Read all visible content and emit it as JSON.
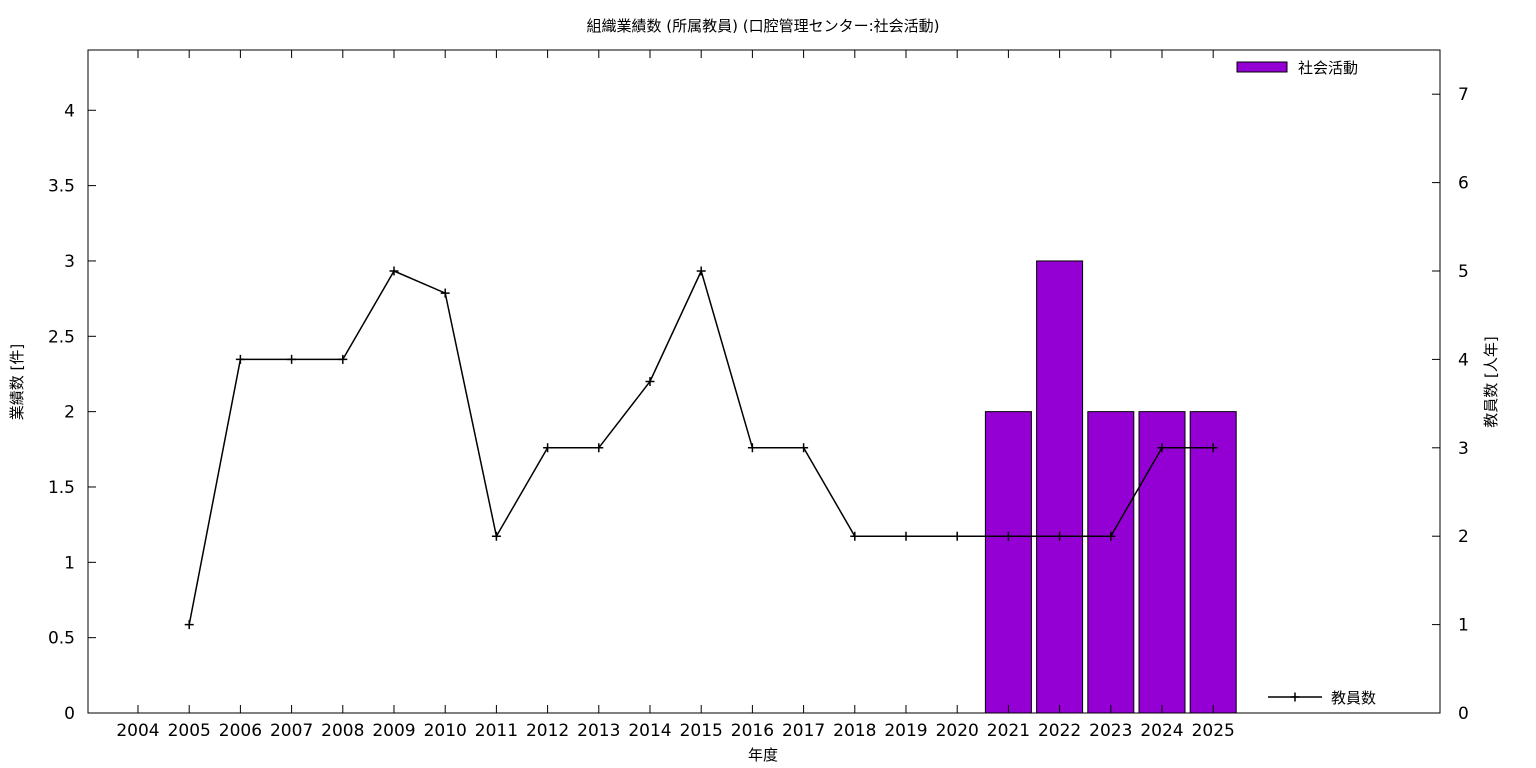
{
  "chart_data": {
    "type": "bar",
    "title": "組織業績数 (所属教員) (口腔管理センター:社会活動)",
    "xlabel": "年度",
    "ylabel": "業績数 [件]",
    "y2label": "教員数 [人年]",
    "categories": [
      "2004",
      "2005",
      "2006",
      "2007",
      "2008",
      "2009",
      "2010",
      "2011",
      "2012",
      "2013",
      "2014",
      "2015",
      "2016",
      "2017",
      "2018",
      "2019",
      "2020",
      "2021",
      "2022",
      "2023",
      "2024",
      "2025"
    ],
    "ylim": [
      0,
      4.4
    ],
    "y2lim": [
      0,
      7.5
    ],
    "yticks": [
      "0",
      "0.5",
      "1",
      "1.5",
      "2",
      "2.5",
      "3",
      "3.5",
      "4"
    ],
    "y2ticks": [
      "0",
      "1",
      "2",
      "3",
      "4",
      "5",
      "6",
      "7"
    ],
    "grid": false,
    "series": [
      {
        "name": "社会活動",
        "type": "bar",
        "axis": "left",
        "color": "#9400d3",
        "values": [
          null,
          null,
          null,
          null,
          null,
          null,
          null,
          null,
          null,
          null,
          null,
          null,
          null,
          null,
          null,
          null,
          null,
          2,
          3,
          2,
          2,
          2
        ]
      },
      {
        "name": "教員数",
        "type": "line",
        "axis": "right",
        "color": "#000000",
        "values": [
          null,
          1,
          4,
          4,
          4,
          5,
          4.75,
          2,
          3,
          3,
          3.75,
          5,
          3,
          3,
          2,
          2,
          2,
          2,
          2,
          2,
          3,
          3
        ]
      }
    ],
    "legend": [
      {
        "label": "社会活動",
        "position": "top-right"
      },
      {
        "label": "教員数",
        "position": "bottom-right"
      }
    ]
  }
}
